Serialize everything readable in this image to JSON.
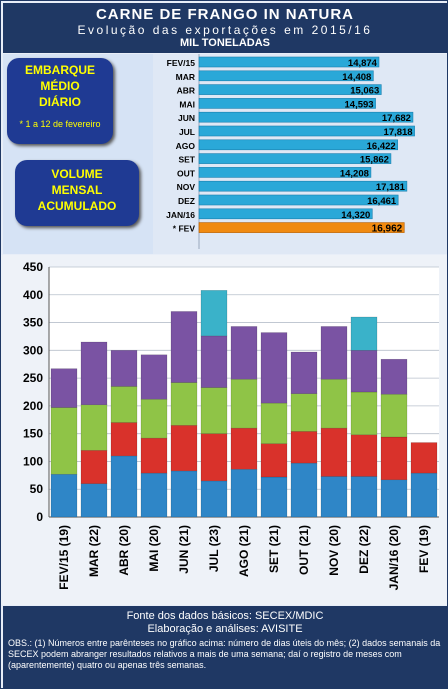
{
  "header": {
    "title": "CARNE DE FRANGO IN NATURA",
    "subtitle": "Evolução das exportações em 2015/16",
    "units": "MIL TONELADAS"
  },
  "callouts": {
    "daily_label": "EMBARQUE\nMÉDIO\nDIÁRIO",
    "daily_note": "* 1 a 12 de fevereiro",
    "monthly_label": "VOLUME\nMENSAL\nACUMULADO"
  },
  "chart_data": [
    {
      "type": "bar",
      "orientation": "horizontal",
      "categories": [
        "FEV/15",
        "MAR",
        "ABR",
        "MAI",
        "JUN",
        "JUL",
        "AGO",
        "SET",
        "OUT",
        "NOV",
        "DEZ",
        "JAN/16",
        "* FEV"
      ],
      "values": [
        14.874,
        14.408,
        15.063,
        14.593,
        17.682,
        17.818,
        16.422,
        15.862,
        14.208,
        17.181,
        16.461,
        14.32,
        16.962
      ],
      "labels": [
        "14,874",
        "14,408",
        "15,063",
        "14,593",
        "17,682",
        "17,818",
        "16,422",
        "15,862",
        "14,208",
        "17,181",
        "16,461",
        "14,320",
        "16,962"
      ],
      "highlight_index": 12,
      "colors": {
        "bar": "#2aa8d8",
        "highlight": "#f08a10"
      }
    },
    {
      "type": "bar",
      "stacked": true,
      "categories": [
        "FEV/15 (19)",
        "MAR (22)",
        "ABR (20)",
        "MAI (20)",
        "JUN (21)",
        "JUL (23)",
        "AGO (21)",
        "SET (21)",
        "OUT (21)",
        "NOV (20)",
        "DEZ (22)",
        "JAN/16 (20)",
        "FEV (19)"
      ],
      "series": [
        {
          "values": [
            77,
            60,
            110,
            79,
            83,
            65,
            86,
            72,
            97,
            73,
            73,
            67,
            79
          ],
          "color": "#2f86c7"
        },
        {
          "values": [
            0,
            60,
            60,
            63,
            82,
            85,
            74,
            60,
            57,
            87,
            75,
            77,
            55
          ],
          "color": "#d9322b"
        },
        {
          "values": [
            120,
            82,
            65,
            70,
            77,
            83,
            88,
            73,
            68,
            88,
            77,
            77,
            0
          ],
          "color": "#8fc447"
        },
        {
          "values": [
            70,
            113,
            65,
            80,
            128,
            93,
            95,
            127,
            75,
            95,
            75,
            63,
            0
          ],
          "color": "#7a53a3"
        },
        {
          "values": [
            0,
            0,
            0,
            0,
            0,
            82,
            0,
            0,
            0,
            0,
            60,
            0,
            0
          ],
          "color": "#3ab2c9"
        }
      ],
      "y_ticks": [
        0,
        50,
        100,
        150,
        200,
        250,
        300,
        350,
        400,
        450
      ],
      "ylim": [
        0,
        450
      ],
      "grid": true
    }
  ],
  "footer": {
    "source": "Fonte dos dados básicos: SECEX/MDIC",
    "analysis": "Elaboração e análises: AVISITE",
    "obs": "OBS.: (1) Números entre parênteses no gráfico acima: número de dias úteis do mês; (2) dados semanais da SECEX podem abranger resultados relativos a mais de uma semana; daí o registro de meses com (aparentemente) quatro ou apenas três semanas."
  }
}
